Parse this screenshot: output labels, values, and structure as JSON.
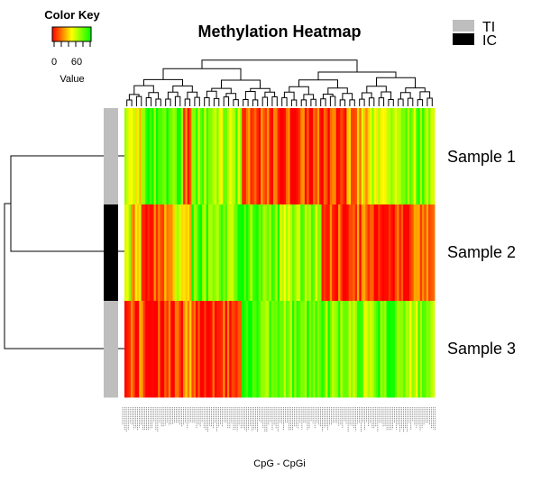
{
  "chart_data": {
    "type": "heatmap",
    "title": "Methylation Heatmap",
    "xlabel": "CpG - CpGi",
    "ylabel": "",
    "rows": [
      "Sample 1",
      "Sample 2",
      "Sample 3"
    ],
    "row_groups": [
      "TI",
      "IC",
      "TI"
    ],
    "legend": [
      {
        "label": "TI",
        "color": "#bebebe"
      },
      {
        "label": "IC",
        "color": "#000000"
      }
    ],
    "color_key": {
      "title": "Color Key",
      "label": "Value",
      "ticks": [
        0,
        60
      ],
      "range": [
        0,
        100
      ],
      "colors": [
        "#ff0000",
        "#ffff00",
        "#00ff00"
      ]
    },
    "segments": [
      {
        "cols": 3,
        "values": [
          70,
          55,
          5
        ]
      },
      {
        "cols": 5,
        "values": [
          55,
          40,
          15
        ]
      },
      {
        "cols": 8,
        "values": [
          85,
          10,
          8
        ]
      },
      {
        "cols": 8,
        "values": [
          80,
          30,
          12
        ]
      },
      {
        "cols": 4,
        "values": [
          85,
          50,
          8
        ]
      },
      {
        "cols": 4,
        "values": [
          20,
          50,
          20
        ]
      },
      {
        "cols": 12,
        "values": [
          75,
          85,
          10
        ]
      },
      {
        "cols": 12,
        "values": [
          70,
          80,
          10
        ]
      },
      {
        "cols": 18,
        "values": [
          10,
          80,
          85
        ]
      },
      {
        "cols": 20,
        "values": [
          10,
          70,
          80
        ]
      },
      {
        "cols": 12,
        "values": [
          10,
          10,
          80
        ]
      },
      {
        "cols": 12,
        "values": [
          35,
          15,
          75
        ]
      },
      {
        "cols": 16,
        "values": [
          65,
          10,
          85
        ]
      },
      {
        "cols": 14,
        "values": [
          75,
          20,
          70
        ]
      }
    ]
  }
}
